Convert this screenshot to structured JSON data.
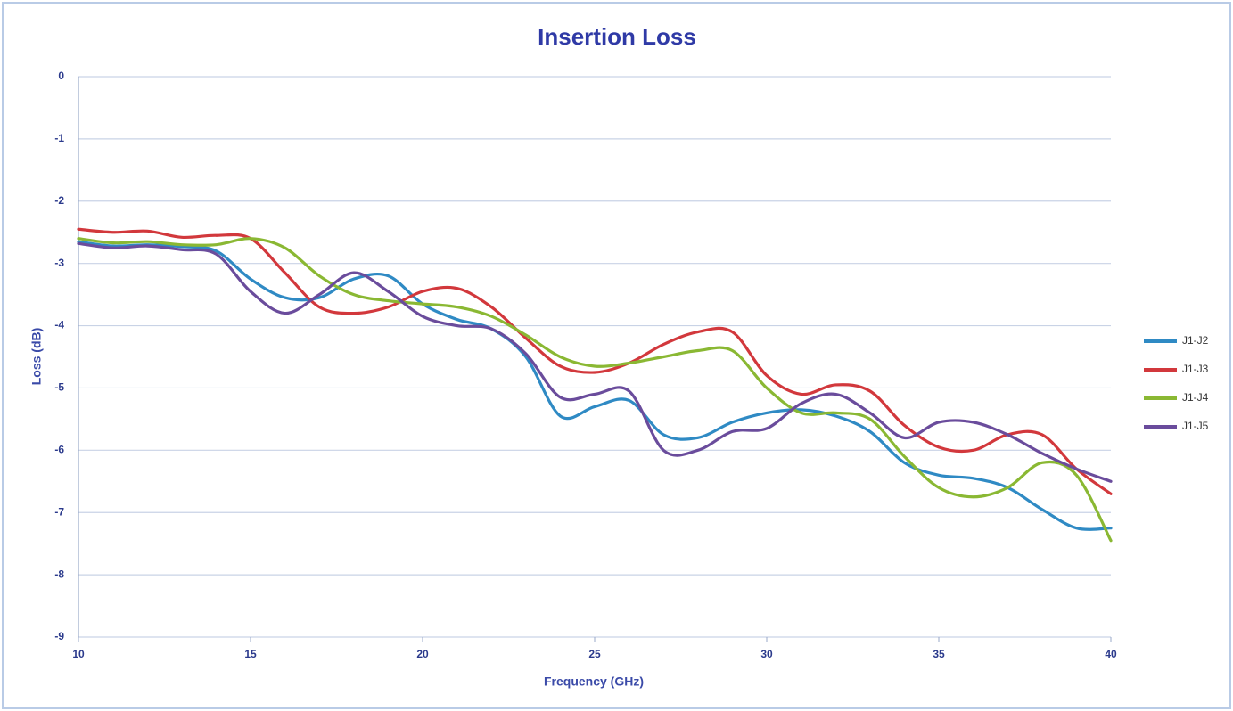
{
  "chart_data": {
    "type": "line",
    "title": "Insertion Loss",
    "x_label": "Frequency (GHz)",
    "y_label": "Loss (dB)",
    "x": [
      10,
      11,
      12,
      13,
      14,
      15,
      16,
      17,
      18,
      19,
      20,
      21,
      22,
      23,
      24,
      25,
      26,
      27,
      28,
      29,
      30,
      31,
      32,
      33,
      34,
      35,
      36,
      37,
      38,
      39,
      40
    ],
    "series": [
      {
        "name": "J1-J2",
        "color": "#2f8ac4",
        "values": [
          -2.65,
          -2.72,
          -2.7,
          -2.73,
          -2.8,
          -3.25,
          -3.55,
          -3.55,
          -3.25,
          -3.2,
          -3.65,
          -3.9,
          -4.05,
          -4.5,
          -5.45,
          -5.3,
          -5.2,
          -5.75,
          -5.8,
          -5.55,
          -5.4,
          -5.35,
          -5.45,
          -5.7,
          -6.2,
          -6.4,
          -6.45,
          -6.6,
          -6.95,
          -7.25,
          -7.25
        ]
      },
      {
        "name": "J1-J3",
        "color": "#d2383c",
        "values": [
          -2.45,
          -2.5,
          -2.48,
          -2.58,
          -2.55,
          -2.6,
          -3.15,
          -3.7,
          -3.8,
          -3.7,
          -3.45,
          -3.4,
          -3.7,
          -4.2,
          -4.65,
          -4.75,
          -4.6,
          -4.3,
          -4.1,
          -4.1,
          -4.8,
          -5.1,
          -4.95,
          -5.05,
          -5.6,
          -5.95,
          -6.0,
          -5.75,
          -5.75,
          -6.3,
          -6.7
        ]
      },
      {
        "name": "J1-J4",
        "color": "#8ab833",
        "values": [
          -2.6,
          -2.67,
          -2.65,
          -2.7,
          -2.7,
          -2.6,
          -2.75,
          -3.2,
          -3.5,
          -3.6,
          -3.65,
          -3.7,
          -3.85,
          -4.15,
          -4.5,
          -4.65,
          -4.6,
          -4.5,
          -4.4,
          -4.4,
          -5.0,
          -5.4,
          -5.4,
          -5.5,
          -6.1,
          -6.6,
          -6.75,
          -6.6,
          -6.2,
          -6.4,
          -7.45
        ]
      },
      {
        "name": "J1-J5",
        "color": "#6a4c9c",
        "values": [
          -2.68,
          -2.75,
          -2.72,
          -2.78,
          -2.85,
          -3.45,
          -3.8,
          -3.5,
          -3.15,
          -3.45,
          -3.85,
          -4.0,
          -4.05,
          -4.45,
          -5.15,
          -5.1,
          -5.05,
          -6.0,
          -6.0,
          -5.7,
          -5.65,
          -5.25,
          -5.1,
          -5.4,
          -5.8,
          -5.55,
          -5.55,
          -5.75,
          -6.05,
          -6.3,
          -6.5
        ]
      }
    ],
    "xlim": [
      10,
      40
    ],
    "xticks": [
      10,
      15,
      20,
      25,
      30,
      35,
      40
    ],
    "ylim": [
      -9,
      0
    ],
    "yticks": [
      0,
      -1,
      -2,
      -3,
      -4,
      -5,
      -6,
      -7,
      -8,
      -9
    ],
    "grid": true,
    "legend": "right"
  }
}
